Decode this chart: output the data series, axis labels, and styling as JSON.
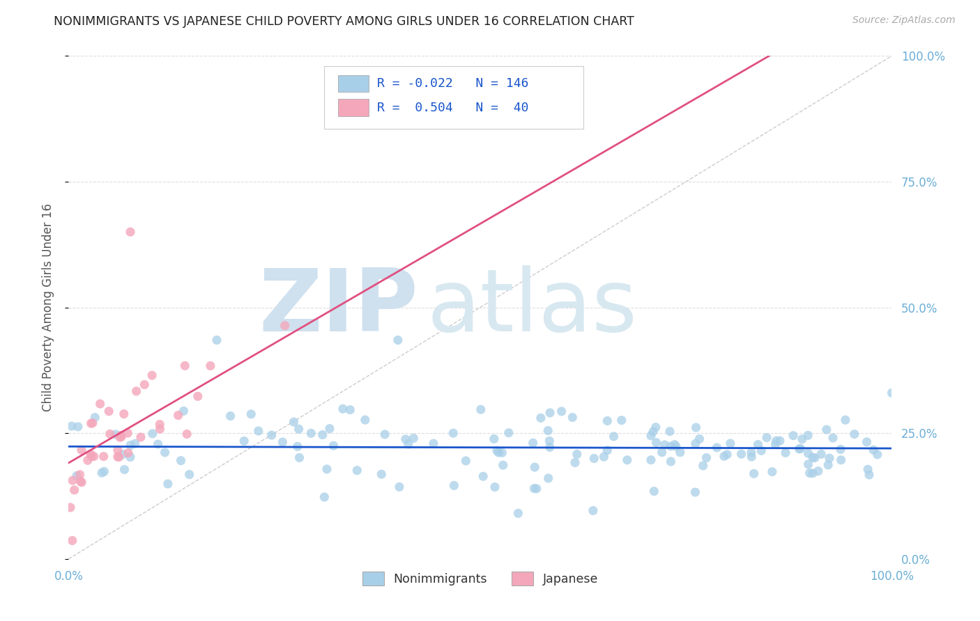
{
  "title": "NONIMMIGRANTS VS JAPANESE CHILD POVERTY AMONG GIRLS UNDER 16 CORRELATION CHART",
  "source": "Source: ZipAtlas.com",
  "ylabel": "Child Poverty Among Girls Under 16",
  "ytick_labels": [
    "0.0%",
    "25.0%",
    "50.0%",
    "75.0%",
    "100.0%"
  ],
  "ytick_vals": [
    0.0,
    0.25,
    0.5,
    0.75,
    1.0
  ],
  "blue_R": -0.022,
  "blue_N": 146,
  "pink_R": 0.504,
  "pink_N": 40,
  "blue_color": "#a8cfe8",
  "pink_color": "#f4a7bb",
  "blue_line_color": "#1a56cc",
  "pink_line_color": "#e05080",
  "diagonal_color": "#cccccc",
  "grid_color": "#dddddd",
  "background_color": "#ffffff",
  "title_color": "#222222",
  "axis_label_color": "#555555",
  "tick_label_color": "#6baed6",
  "source_color": "#aaaaaa",
  "watermark_zip_color": "#cfe0ee",
  "watermark_atlas_color": "#d8e8f0",
  "legend_text_color": "#333333",
  "legend_value_color": "#1a56cc",
  "legend_box_edge_color": "#cccccc"
}
